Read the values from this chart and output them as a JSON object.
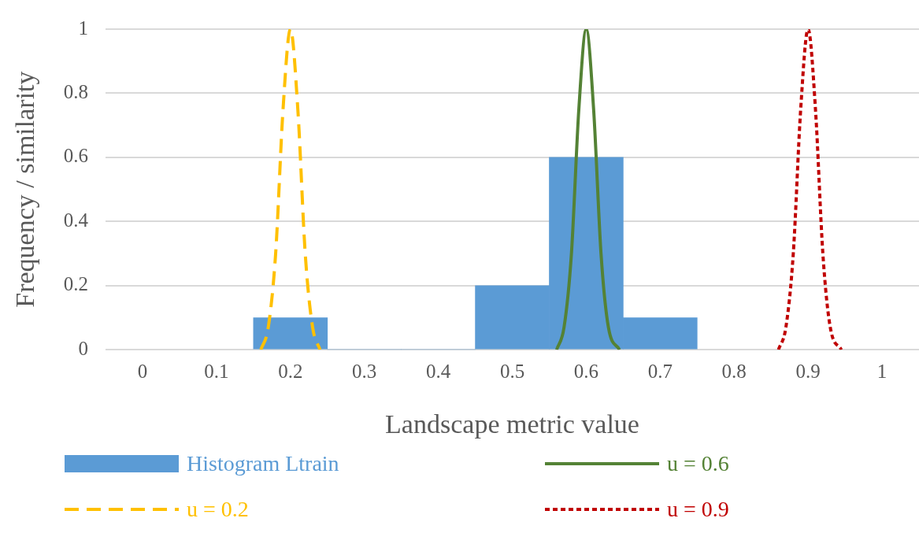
{
  "chart_data": {
    "type": "histogram",
    "xlabel": "Landscape metric value",
    "ylabel": "Frequency / similarity",
    "xlim": [
      -0.05,
      1.05
    ],
    "xticks": [
      0,
      0.1,
      0.2,
      0.3,
      0.4,
      0.5,
      0.6,
      0.7,
      0.8,
      0.9,
      1
    ],
    "ylim": [
      0,
      1
    ],
    "yticks": [
      0,
      0.2,
      0.4,
      0.6,
      0.8,
      1
    ],
    "grid": "y",
    "legend": "bottom",
    "marker": "none",
    "series": [
      {
        "name": "Histogram Ltrain",
        "color": "#5b9bd5",
        "bins": [
          0.15,
          0.25,
          0.35,
          0.45,
          0.55,
          0.65,
          0.75
        ],
        "values": [
          0.1,
          0,
          0,
          0.2,
          0.6,
          0.1
        ]
      },
      {
        "name": "u = 0.6",
        "type": "line",
        "color": "#548235",
        "line_style": "solid",
        "x": [
          0.56,
          0.57,
          0.58,
          0.59,
          0.6,
          0.61,
          0.62,
          0.63,
          0.645
        ],
        "values": [
          0,
          0.07,
          0.3,
          0.75,
          1,
          0.75,
          0.3,
          0.07,
          0
        ]
      },
      {
        "name": "u = 0.2",
        "type": "line",
        "color": "#ffc000",
        "line_style": "dashed",
        "x": [
          0.16,
          0.17,
          0.18,
          0.19,
          0.2,
          0.21,
          0.22,
          0.23,
          0.24
        ],
        "values": [
          0,
          0.07,
          0.3,
          0.75,
          1,
          0.75,
          0.3,
          0.07,
          0
        ]
      },
      {
        "name": "u = 0.9",
        "type": "line",
        "color": "#c00000",
        "line_style": "dotted",
        "x": [
          0.86,
          0.87,
          0.88,
          0.89,
          0.9,
          0.91,
          0.92,
          0.93,
          0.945
        ],
        "values": [
          0,
          0.07,
          0.3,
          0.75,
          1,
          0.75,
          0.3,
          0.07,
          0
        ]
      }
    ]
  }
}
